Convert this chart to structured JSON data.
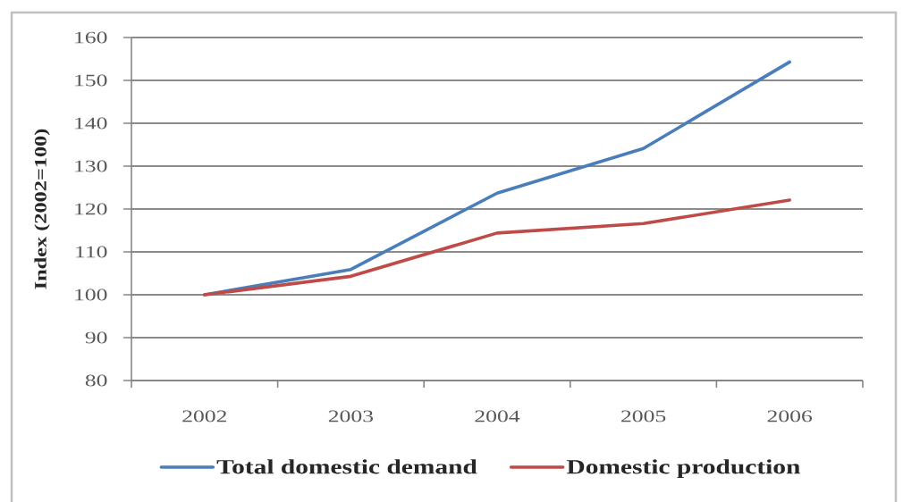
{
  "chart_data": {
    "type": "line",
    "ylabel": "Index (2002=100)",
    "categories": [
      "2002",
      "2003",
      "2004",
      "2005",
      "2006"
    ],
    "series": [
      {
        "name": "Total domestic demand",
        "color": "#4a7ebb",
        "values": [
          100,
          105.9,
          123.7,
          134.1,
          154.3
        ]
      },
      {
        "name": "Domestic production",
        "color": "#be4b48",
        "values": [
          100,
          104.3,
          114.4,
          116.6,
          122.1
        ]
      }
    ],
    "ylim": [
      80,
      160
    ],
    "yticks": [
      80,
      90,
      100,
      110,
      120,
      130,
      140,
      150,
      160
    ],
    "grid": "y",
    "legend": "bottom",
    "marker": "none",
    "line_style": "solid"
  }
}
